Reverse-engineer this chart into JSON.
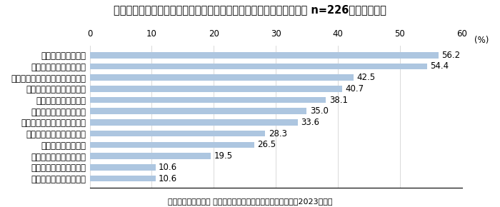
{
  "title": "普段の生活において実施している自宅の防犯対策（防犯をしている人 n=226／複数回答）",
  "categories": [
    "防犯ガラスの活用／設置",
    "窓に防犯フィルムを貼る",
    "防犯カメラの活用／設置",
    "部屋の照明をつける",
    "雨戸・シャッターを下ろす",
    "センサータイトの活用／設置",
    "ドアのチェーンをかける",
    "遮光カーテンを閉める",
    "玄関ドアの鍵を二重にする",
    "カメラ付きドアホンの活用／設置",
    "外出時に戸締りの再確認",
    "就寝時に窓を閉める"
  ],
  "values": [
    10.6,
    10.6,
    19.5,
    26.5,
    28.3,
    33.6,
    35.0,
    38.1,
    40.7,
    42.5,
    54.4,
    56.2
  ],
  "bar_color": "#adc6e0",
  "xlim": [
    0,
    60
  ],
  "xticks": [
    0,
    10,
    20,
    30,
    40,
    50,
    60
  ],
  "xlabel_unit": "(%)",
  "footnote": "積水ハウス株式会社 住生活研究所「自宅における防犯調査（2023年）」",
  "title_fontsize": 10.5,
  "label_fontsize": 8.5,
  "value_fontsize": 8.5,
  "tick_fontsize": 8.5,
  "footnote_fontsize": 8.0,
  "bar_height": 0.55
}
